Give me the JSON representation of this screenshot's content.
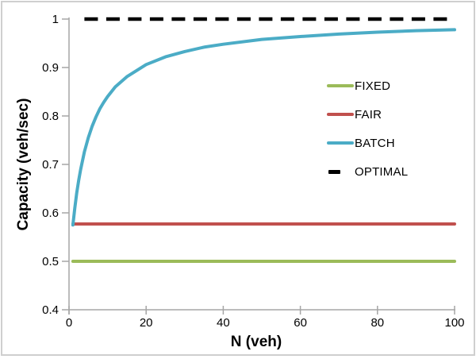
{
  "window": {
    "background": "#ffffff",
    "border_color": "#cfcfcf"
  },
  "chart_data": {
    "type": "line",
    "title": "",
    "xlabel": "N (veh)",
    "ylabel": "Capacity (veh/sec)",
    "xlim": [
      0,
      100
    ],
    "ylim": [
      0.4,
      1.0
    ],
    "grid": false,
    "legend_position": "middle-right",
    "axis_color": "#a6a6a6",
    "text_color": "#000000",
    "x_ticks": [
      {
        "value": 0,
        "label": "0"
      },
      {
        "value": 20,
        "label": "20"
      },
      {
        "value": 40,
        "label": "40"
      },
      {
        "value": 60,
        "label": "60"
      },
      {
        "value": 80,
        "label": "80"
      },
      {
        "value": 100,
        "label": "100"
      }
    ],
    "y_ticks": [
      {
        "value": 1,
        "label": "1"
      },
      {
        "value": 0.9,
        "label": "0.9"
      },
      {
        "value": 0.8,
        "label": "0.8"
      },
      {
        "value": 0.7,
        "label": "0.7"
      },
      {
        "value": 0.6,
        "label": "0.6"
      },
      {
        "value": 0.5,
        "label": "0.5"
      },
      {
        "value": 0.4,
        "label": "0.4"
      }
    ],
    "series": [
      {
        "name": "FIXED",
        "color": "#9bbb59",
        "style": "solid",
        "x": [
          1,
          100
        ],
        "y": [
          0.5,
          0.5
        ]
      },
      {
        "name": "FAIR",
        "color": "#c0504d",
        "style": "solid",
        "x": [
          1,
          100
        ],
        "y": [
          0.577,
          0.577
        ]
      },
      {
        "name": "BATCH",
        "color": "#4bacc6",
        "style": "solid",
        "x": [
          1,
          1.5,
          2,
          2.5,
          3,
          4,
          5,
          6,
          7,
          8,
          9,
          10,
          12,
          15,
          20,
          25,
          30,
          35,
          40,
          50,
          60,
          70,
          80,
          90,
          100
        ],
        "y": [
          0.575,
          0.61,
          0.641,
          0.667,
          0.689,
          0.726,
          0.755,
          0.779,
          0.798,
          0.815,
          0.828,
          0.84,
          0.86,
          0.881,
          0.906,
          0.922,
          0.933,
          0.942,
          0.948,
          0.958,
          0.964,
          0.969,
          0.973,
          0.976,
          0.978
        ]
      },
      {
        "name": "OPTIMAL",
        "color": "#000000",
        "style": "dashed",
        "x": [
          4,
          100
        ],
        "y": [
          1.0,
          1.0
        ]
      }
    ]
  }
}
